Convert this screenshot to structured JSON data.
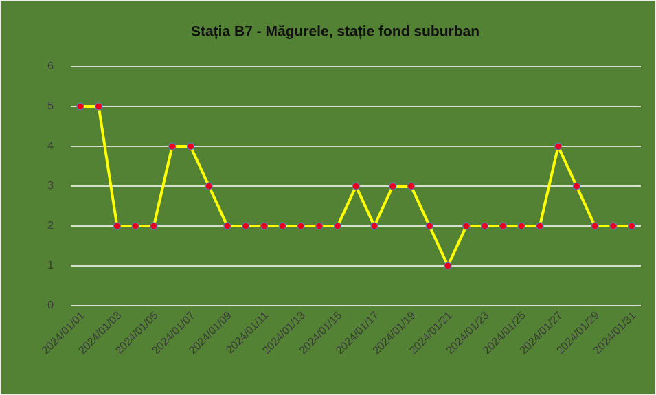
{
  "chart_data": {
    "type": "line",
    "title": "Stația B7 - Măgurele, stație fond suburban",
    "categories": [
      "2024/01/01",
      null,
      "2024/01/03",
      null,
      "2024/01/05",
      null,
      "2024/01/07",
      null,
      "2024/01/09",
      null,
      "2024/01/11",
      null,
      "2024/01/13",
      null,
      "2024/01/15",
      null,
      "2024/01/17",
      null,
      "2024/01/19",
      null,
      "2024/01/21",
      null,
      "2024/01/23",
      null,
      "2024/01/25",
      null,
      "2024/01/27",
      null,
      "2024/01/29",
      null,
      "2024/01/31"
    ],
    "series": [
      {
        "color": "#ffff00",
        "marker_color": "#e8001c",
        "values": [
          5,
          5,
          2,
          2,
          2,
          4,
          4,
          3,
          2,
          2,
          2,
          2,
          2,
          2,
          2,
          3,
          2,
          3,
          3,
          2,
          1,
          2,
          2,
          2,
          2,
          2,
          4,
          3,
          2,
          2,
          2
        ]
      }
    ],
    "ylim": [
      0,
      6
    ],
    "yticks": [
      0,
      1,
      2,
      3,
      4,
      5,
      6
    ],
    "grid": true
  }
}
